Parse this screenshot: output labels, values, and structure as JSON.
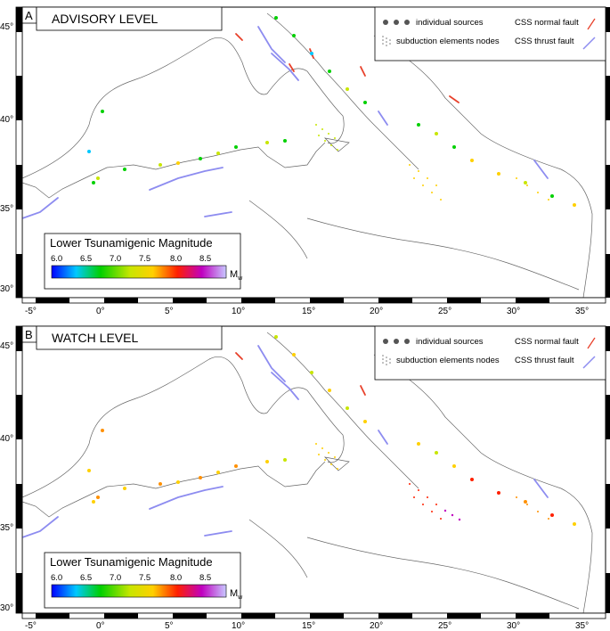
{
  "panels": [
    {
      "letter": "A",
      "title": "ADVISORY LEVEL",
      "legend": {
        "individual_sources": "individual sources",
        "subduction_nodes": "subduction elements nodes",
        "normal_fault": "CSS normal fault",
        "thrust_fault": "CSS thrust fault"
      },
      "colorbar": {
        "title": "Lower Tsunamigenic Magnitude",
        "ticks": [
          "6.0",
          "6.5",
          "7.0",
          "7.5",
          "8.0",
          "8.5"
        ],
        "unit_main": "M",
        "unit_sub": "w"
      },
      "lon_ticks": [
        "-5°",
        "0°",
        "5°",
        "10°",
        "15°",
        "20°",
        "25°",
        "30°",
        "35°"
      ],
      "lat_ticks": [
        "45°",
        "40°",
        "35°",
        "30°"
      ]
    },
    {
      "letter": "B",
      "title": "WATCH LEVEL",
      "legend": {
        "individual_sources": "individual sources",
        "subduction_nodes": "subduction elements nodes",
        "normal_fault": "CSS normal fault",
        "thrust_fault": "CSS thrust fault"
      },
      "colorbar": {
        "title": "Lower Tsunamigenic Magnitude",
        "ticks": [
          "6.0",
          "6.5",
          "7.0",
          "7.5",
          "8.0",
          "8.5"
        ],
        "unit_main": "M",
        "unit_sub": "w"
      },
      "lon_ticks": [
        "-5°",
        "0°",
        "5°",
        "10°",
        "15°",
        "20°",
        "25°",
        "30°",
        "35°"
      ],
      "lat_ticks": [
        "45°",
        "40°",
        "35°",
        "30°"
      ]
    }
  ],
  "colors": {
    "normal_fault": "#e8402a",
    "thrust_fault": "#8d8cf0",
    "source_dot": "#555555",
    "coast": "#666666",
    "colorbar_stops": [
      "#0000ff",
      "#00c8ff",
      "#00d000",
      "#c8e600",
      "#ffd000",
      "#ff2000",
      "#c000c0",
      "#c8c8ff"
    ]
  }
}
